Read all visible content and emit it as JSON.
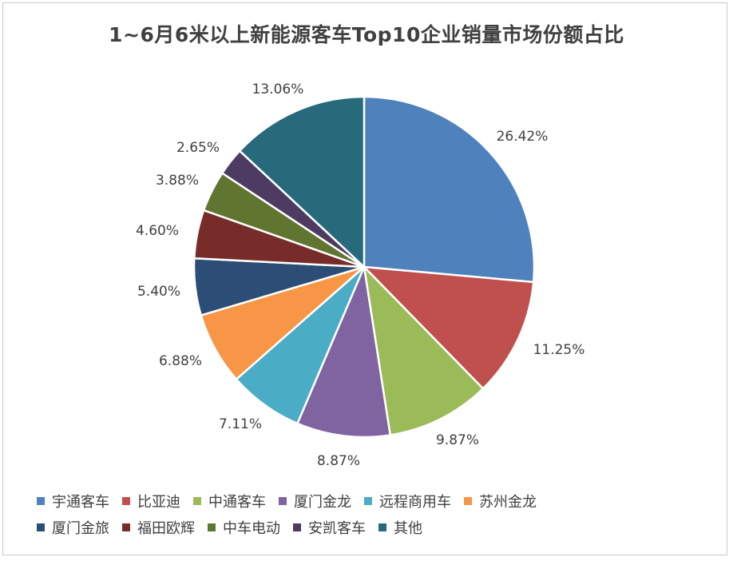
{
  "chart_data": {
    "type": "pie",
    "title": "1~6月6米以上新能源客车Top10企业销量市场份额占比",
    "categories": [
      "宇通客车",
      "比亚迪",
      "中通客车",
      "厦门金龙",
      "远程商用车",
      "苏州金龙",
      "厦门金旅",
      "福田欧辉",
      "中车电动",
      "安凯客车",
      "其他"
    ],
    "values": [
      26.42,
      11.25,
      9.87,
      8.87,
      7.11,
      6.88,
      5.4,
      4.6,
      3.88,
      2.65,
      13.06
    ],
    "labels": [
      "26.42%",
      "11.25%",
      "9.87%",
      "8.87%",
      "7.11%",
      "6.88%",
      "5.40%",
      "4.60%",
      "3.88%",
      "2.65%",
      "13.06%"
    ],
    "colors": [
      "#4f81bd",
      "#c0504d",
      "#9bbb59",
      "#8064a2",
      "#4bacc6",
      "#f79646",
      "#2c4d75",
      "#772c2a",
      "#5f7530",
      "#4d3b62",
      "#276a7c"
    ],
    "legend_position": "bottom",
    "legend_rows": [
      [
        0,
        1,
        2,
        3,
        4,
        5
      ],
      [
        6,
        7,
        8,
        9,
        10
      ]
    ],
    "start_angle": "top",
    "direction": "clockwise"
  }
}
